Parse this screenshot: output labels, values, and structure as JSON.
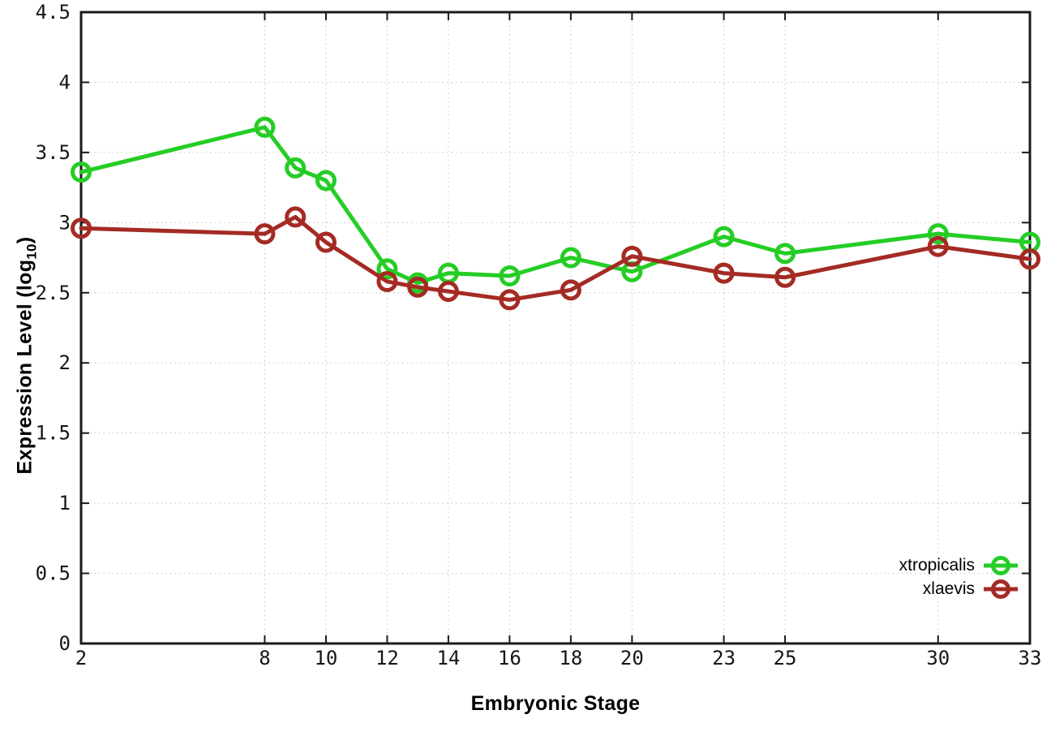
{
  "chart_data": {
    "type": "line",
    "xlabel": "Embryonic Stage",
    "ylabel": "Expression Level (log10)",
    "ylabel_parts": {
      "pre": "Expression Level (log",
      "sub": "10",
      "post": ")"
    },
    "xlim": [
      2,
      33
    ],
    "ylim": [
      0,
      4.5
    ],
    "grid": true,
    "legend_position": "bottom-right",
    "x": [
      2,
      8,
      9,
      10,
      12,
      13,
      14,
      16,
      18,
      20,
      23,
      25,
      30,
      33
    ],
    "x_ticks": [
      2,
      8,
      10,
      12,
      14,
      16,
      18,
      20,
      23,
      25,
      30,
      33
    ],
    "x_tick_labels": [
      "2",
      "8",
      "10",
      "12",
      "14",
      "16",
      "18",
      "20",
      "23",
      "25",
      "30",
      "33"
    ],
    "y_ticks": [
      0,
      0.5,
      1,
      1.5,
      2,
      2.5,
      3,
      3.5,
      4,
      4.5
    ],
    "y_tick_labels": [
      "0",
      "0.5",
      "1",
      "1.5",
      "2",
      "2.5",
      "3",
      "3.5",
      "4",
      "4.5"
    ],
    "marker": "open-circle",
    "series": [
      {
        "name": "xtropicalis",
        "color": "#25cd25",
        "values": [
          3.36,
          3.68,
          3.39,
          3.3,
          2.67,
          2.57,
          2.64,
          2.62,
          2.75,
          2.65,
          2.9,
          2.78,
          2.92,
          2.86
        ]
      },
      {
        "name": "xlaevis",
        "color": "#a42b24",
        "values": [
          2.96,
          2.92,
          3.04,
          2.86,
          2.58,
          2.54,
          2.51,
          2.45,
          2.52,
          2.76,
          2.64,
          2.61,
          2.83,
          2.74
        ]
      }
    ],
    "style": {
      "border_color": "#1a1a1a",
      "grid_color": "#c3c3c3",
      "tick_color": "#1a1a1a",
      "background": "#ffffff"
    }
  }
}
